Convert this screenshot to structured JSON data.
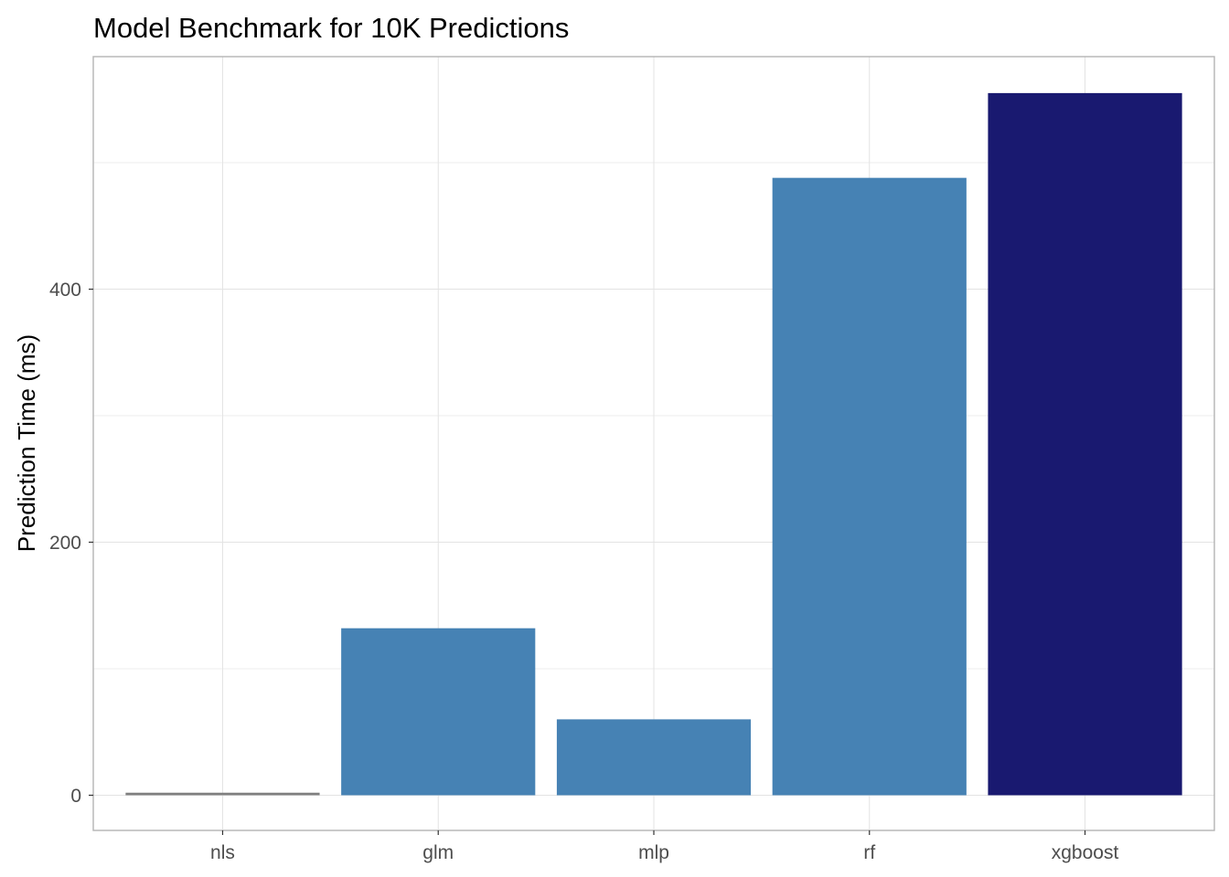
{
  "chart_data": {
    "type": "bar",
    "title": "Model Benchmark for 10K Predictions",
    "xlabel": "",
    "ylabel": "Prediction Time (ms)",
    "categories": [
      "nls",
      "glm",
      "mlp",
      "rf",
      "xgboost"
    ],
    "values": [
      2,
      132,
      60,
      488,
      555
    ],
    "colors": [
      "#808080",
      "#4682b4",
      "#4682b4",
      "#4682b4",
      "#191970"
    ],
    "ylim": [
      -27.8,
      583.8
    ],
    "yticks": [
      0,
      200,
      400
    ],
    "grid": true,
    "legend": "none"
  }
}
